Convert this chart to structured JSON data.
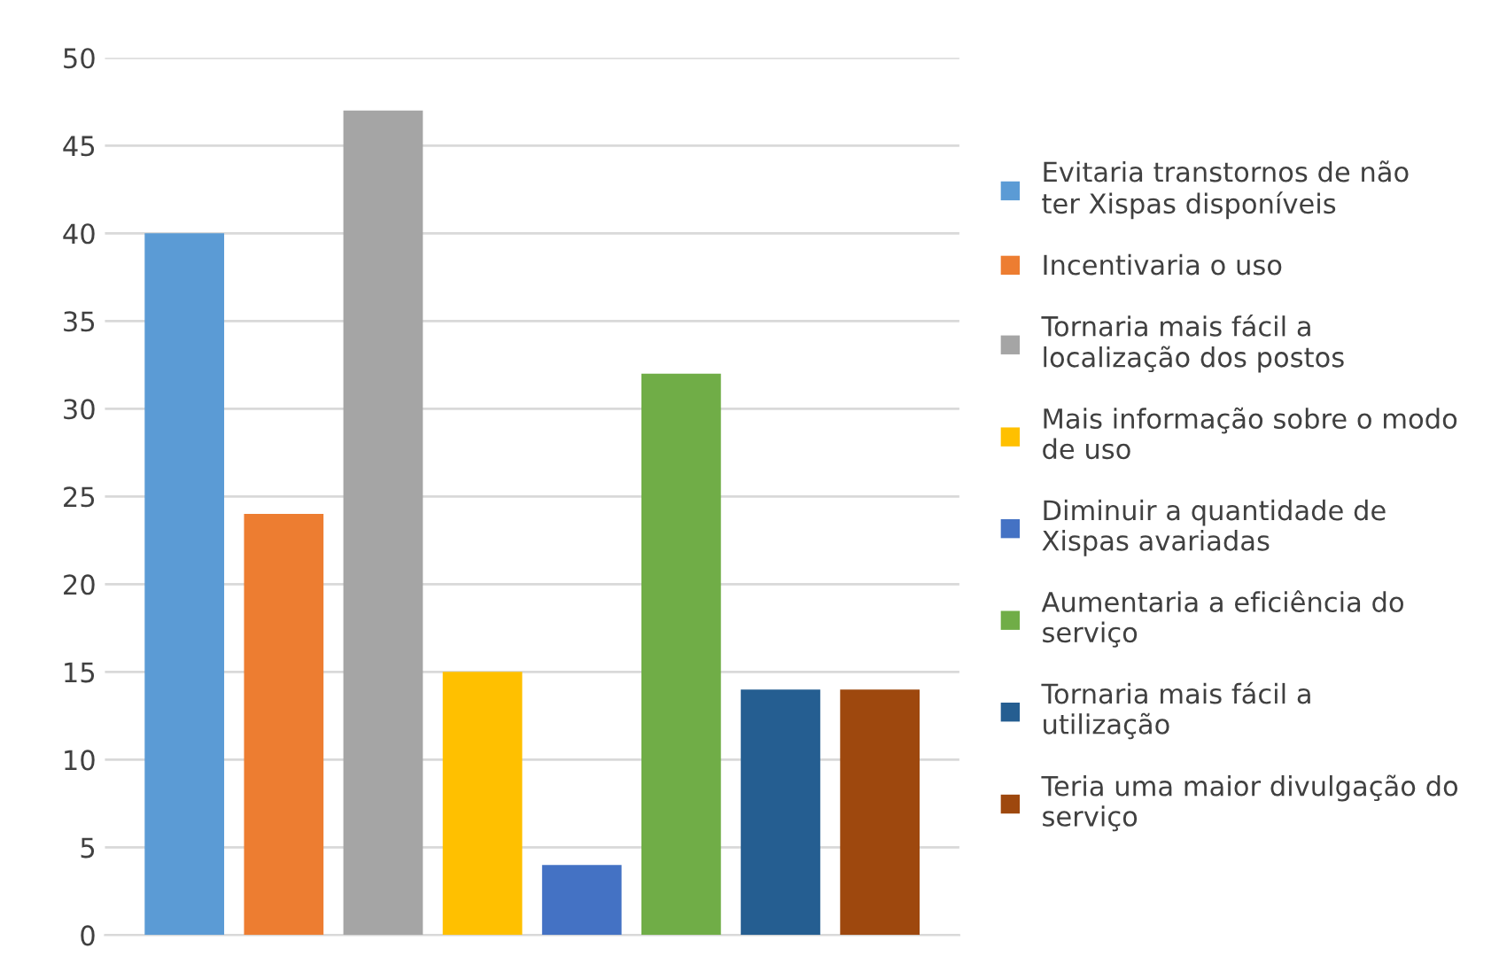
{
  "chart_data": {
    "type": "bar",
    "categories": [
      null,
      null,
      null,
      null,
      null,
      null,
      null,
      null
    ],
    "series": [
      {
        "name": "Evitaria transtornos de não ter Xispas disponíveis",
        "color": "#5b9bd5",
        "values": [
          40,
          null,
          null,
          null,
          null,
          null,
          null,
          null
        ]
      },
      {
        "name": "Incentivaria o uso",
        "color": "#ed7d31",
        "values": [
          null,
          24,
          null,
          null,
          null,
          null,
          null,
          null
        ]
      },
      {
        "name": "Tornaria mais fácil a localização dos postos",
        "color": "#a5a5a5",
        "values": [
          null,
          null,
          47,
          null,
          null,
          null,
          null,
          null
        ]
      },
      {
        "name": "Mais informação sobre o modo de uso",
        "color": "#ffc000",
        "values": [
          null,
          null,
          null,
          15,
          null,
          null,
          null,
          null
        ]
      },
      {
        "name": "Diminuir a quantidade de Xispas avariadas",
        "color": "#4472c4",
        "values": [
          null,
          null,
          null,
          null,
          4,
          null,
          null,
          null
        ]
      },
      {
        "name": "Aumentaria a eficiência do serviço",
        "color": "#70ad47",
        "values": [
          null,
          null,
          null,
          null,
          null,
          32,
          null,
          null
        ]
      },
      {
        "name": "Tornaria mais fácil a utilização",
        "color": "#255e91",
        "values": [
          null,
          null,
          null,
          null,
          null,
          null,
          14,
          null
        ]
      },
      {
        "name": "Teria uma maior divulgação do serviço",
        "color": "#9e480e",
        "values": [
          null,
          null,
          null,
          null,
          null,
          null,
          null,
          14
        ]
      }
    ],
    "ylim": [
      0,
      50
    ],
    "yticks": [
      0,
      5,
      10,
      15,
      20,
      25,
      30,
      35,
      40,
      45,
      50
    ],
    "grid": "y",
    "legend": "right",
    "tick_labels": "y"
  }
}
